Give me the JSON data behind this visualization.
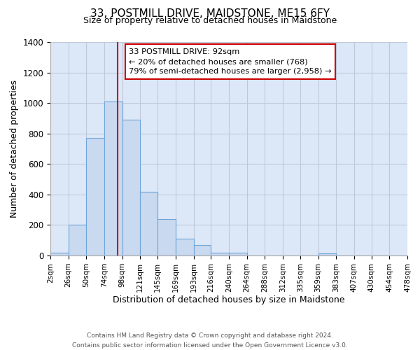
{
  "title": "33, POSTMILL DRIVE, MAIDSTONE, ME15 6FY",
  "subtitle": "Size of property relative to detached houses in Maidstone",
  "xlabel": "Distribution of detached houses by size in Maidstone",
  "ylabel": "Number of detached properties",
  "bin_edges": [
    2,
    26,
    50,
    74,
    98,
    121,
    145,
    169,
    193,
    216,
    240,
    264,
    288,
    312,
    335,
    359,
    383,
    407,
    430,
    454,
    478
  ],
  "bin_labels": [
    "2sqm",
    "26sqm",
    "50sqm",
    "74sqm",
    "98sqm",
    "121sqm",
    "145sqm",
    "169sqm",
    "193sqm",
    "216sqm",
    "240sqm",
    "264sqm",
    "288sqm",
    "312sqm",
    "335sqm",
    "359sqm",
    "383sqm",
    "407sqm",
    "430sqm",
    "454sqm",
    "478sqm"
  ],
  "counts": [
    20,
    200,
    770,
    1010,
    890,
    420,
    240,
    110,
    70,
    20,
    20,
    0,
    0,
    0,
    0,
    15,
    0,
    0,
    0,
    0
  ],
  "bar_color": "#c9d9f0",
  "bar_edge_color": "#6ea5d8",
  "vertical_line_x": 92,
  "vertical_line_color": "#cc0000",
  "annotation_line1": "33 POSTMILL DRIVE: 92sqm",
  "annotation_line2": "← 20% of detached houses are smaller (768)",
  "annotation_line3": "79% of semi-detached houses are larger (2,958) →",
  "annotation_box_color": "#ffffff",
  "annotation_box_edge_color": "#cc0000",
  "ylim": [
    0,
    1400
  ],
  "yticks": [
    0,
    200,
    400,
    600,
    800,
    1000,
    1200,
    1400
  ],
  "grid_color": "#c0c8d8",
  "background_color": "#dce8f8",
  "fig_background_color": "#ffffff",
  "footer_line1": "Contains HM Land Registry data © Crown copyright and database right 2024.",
  "footer_line2": "Contains public sector information licensed under the Open Government Licence v3.0."
}
